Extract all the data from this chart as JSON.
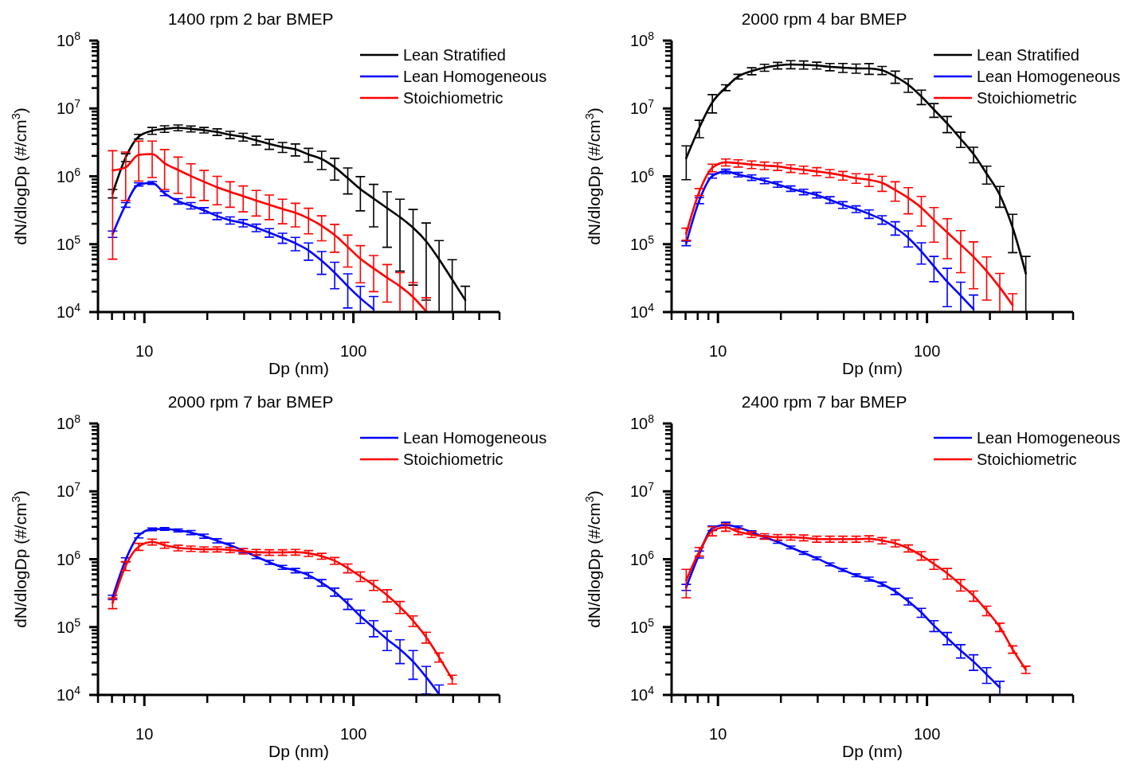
{
  "chart_data": [
    {
      "type": "line",
      "title": "1400 rpm 2 bar BMEP",
      "xlabel": "Dp (nm)",
      "ylabel": "dN/dlogDp (#/cm$^{3}$)",
      "log": "xy",
      "legend": "top right",
      "xlim": [
        6,
        500
      ],
      "ylim": [
        10000,
        100000000
      ],
      "xticks": [
        {
          "value": 6,
          "label": null
        },
        {
          "value": 7,
          "label": null
        },
        {
          "value": 8,
          "label": null
        },
        {
          "value": 9,
          "label": null
        },
        {
          "value": 10,
          "label": "10"
        },
        {
          "value": 20,
          "label": null
        },
        {
          "value": 30,
          "label": null
        },
        {
          "value": 40,
          "label": null
        },
        {
          "value": 50,
          "label": null
        },
        {
          "value": 60,
          "label": null
        },
        {
          "value": 70,
          "label": null
        },
        {
          "value": 80,
          "label": null
        },
        {
          "value": 90,
          "label": null
        },
        {
          "value": 100,
          "label": "100"
        },
        {
          "value": 200,
          "label": null
        },
        {
          "value": 300,
          "label": null
        },
        {
          "value": 400,
          "label": null
        },
        {
          "value": 500,
          "label": null
        }
      ],
      "yticks": [
        {
          "value": 10000,
          "label": "10$^{4}$"
        },
        {
          "value": 20000,
          "label": null
        },
        {
          "value": 30000,
          "label": null
        },
        {
          "value": 40000,
          "label": null
        },
        {
          "value": 50000,
          "label": null
        },
        {
          "value": 60000,
          "label": null
        },
        {
          "value": 70000,
          "label": null
        },
        {
          "value": 80000,
          "label": null
        },
        {
          "value": 90000,
          "label": null
        },
        {
          "value": 100000,
          "label": "10$^{5}$"
        },
        {
          "value": 200000,
          "label": null
        },
        {
          "value": 300000,
          "label": null
        },
        {
          "value": 400000,
          "label": null
        },
        {
          "value": 500000,
          "label": null
        },
        {
          "value": 600000,
          "label": null
        },
        {
          "value": 700000,
          "label": null
        },
        {
          "value": 800000,
          "label": null
        },
        {
          "value": 900000,
          "label": null
        },
        {
          "value": 1000000,
          "label": "10$^{6}$"
        },
        {
          "value": 2000000,
          "label": null
        },
        {
          "value": 3000000,
          "label": null
        },
        {
          "value": 4000000,
          "label": null
        },
        {
          "value": 5000000,
          "label": null
        },
        {
          "value": 6000000,
          "label": null
        },
        {
          "value": 7000000,
          "label": null
        },
        {
          "value": 8000000,
          "label": null
        },
        {
          "value": 9000000,
          "label": null
        },
        {
          "value": 10000000,
          "label": "10$^{7}$"
        },
        {
          "value": 20000000,
          "label": null
        },
        {
          "value": 30000000,
          "label": null
        },
        {
          "value": 40000000,
          "label": null
        },
        {
          "value": 50000000,
          "label": null
        },
        {
          "value": 60000000,
          "label": null
        },
        {
          "value": 70000000,
          "label": null
        },
        {
          "value": 80000000,
          "label": null
        },
        {
          "value": 90000000,
          "label": null
        },
        {
          "value": 100000000,
          "label": "10$^{8}$"
        }
      ],
      "x": [
        7.05,
        8.14,
        9.4,
        10.9,
        12.5,
        14.5,
        16.7,
        19.3,
        22.3,
        25.7,
        29.7,
        34.3,
        39.6,
        45.8,
        52.8,
        61,
        70.5,
        81.4,
        94,
        108,
        125,
        145,
        167,
        193,
        223,
        257,
        297,
        343
      ],
      "series": [
        {
          "name": "Lean Stratified",
          "color": "#000000",
          "values": [
            560000.0,
            1900000.0,
            3860000.0,
            4700000.0,
            5000000.0,
            5200000.0,
            5000000.0,
            4800000.0,
            4500000.0,
            4100000.0,
            3800000.0,
            3400000.0,
            3000000.0,
            2700000.0,
            2500000.0,
            2100000.0,
            1800000.0,
            1360000.0,
            940000.0,
            650000.0,
            470000.0,
            340000.0,
            250000.0,
            175000.0,
            110000.0,
            60000.0,
            30000.0,
            15000.0
          ],
          "errors": [
            80000.0,
            250000.0,
            300000.0,
            550000.0,
            550000.0,
            500000.0,
            500000.0,
            450000.0,
            500000.0,
            500000.0,
            500000.0,
            500000.0,
            500000.0,
            450000.0,
            500000.0,
            480000.0,
            540000.0,
            480000.0,
            390000.0,
            340000.0,
            290000.0,
            250000.0,
            210000.0,
            150000.0,
            95000.0,
            53000.0,
            29000.0,
            9000.0
          ]
        },
        {
          "name": "Lean Homogeneous",
          "color": "#0000ff",
          "values": [
            141000.0,
            380000.0,
            760000.0,
            800000.0,
            560000.0,
            430000.0,
            370000.0,
            315000.0,
            260000.0,
            225000.0,
            205000.0,
            175000.0,
            148000.0,
            124000.0,
            103000.0,
            81000.0,
            57000.0,
            38000.0,
            24000.0,
            16000.0,
            11000.0,
            null,
            null,
            null,
            null,
            null,
            null,
            null
          ],
          "errors": [
            15000.0,
            30000.0,
            40000.0,
            40000.0,
            40000.0,
            40000.0,
            40000.0,
            30000.0,
            30000.0,
            27000.0,
            25000.0,
            22000.0,
            21000.0,
            21000.0,
            23000.0,
            23000.0,
            21000.0,
            16000.0,
            12500.0,
            7900.0,
            5900.0,
            null,
            null,
            null,
            null,
            null,
            null,
            null
          ]
        },
        {
          "name": "Stoichiometric",
          "color": "#ff0000",
          "values": [
            1220000.0,
            1360000.0,
            2070000.0,
            2130000.0,
            1560000.0,
            1240000.0,
            1010000.0,
            830000.0,
            690000.0,
            590000.0,
            510000.0,
            440000.0,
            380000.0,
            330000.0,
            290000.0,
            240000.0,
            187000.0,
            136000.0,
            91000.0,
            61000.0,
            44000.0,
            32000.0,
            24000.0,
            16600.0,
            10200.0,
            null,
            null,
            null
          ],
          "errors": [
            1160000.0,
            920000.0,
            1220000.0,
            1170000.0,
            920000.0,
            680000.0,
            520000.0,
            390000.0,
            310000.0,
            240000.0,
            210000.0,
            180000.0,
            150000.0,
            130000.0,
            110000.0,
            98000.0,
            75000.0,
            60000.0,
            45000.0,
            34000.0,
            24000.0,
            18000.0,
            14000.0,
            10600.0,
            6000.0,
            null,
            null,
            null
          ]
        }
      ]
    },
    {
      "type": "line",
      "title": "2000 rpm 4 bar BMEP",
      "xlabel": "Dp (nm)",
      "ylabel": "dN/dlogDp (#/cm$^{3}$)",
      "log": "xy",
      "legend": "top right",
      "xlim": [
        6,
        500
      ],
      "ylim": [
        10000,
        100000000
      ],
      "xticks": [
        {
          "value": 6,
          "label": null
        },
        {
          "value": 7,
          "label": null
        },
        {
          "value": 8,
          "label": null
        },
        {
          "value": 9,
          "label": null
        },
        {
          "value": 10,
          "label": "10"
        },
        {
          "value": 20,
          "label": null
        },
        {
          "value": 30,
          "label": null
        },
        {
          "value": 40,
          "label": null
        },
        {
          "value": 50,
          "label": null
        },
        {
          "value": 60,
          "label": null
        },
        {
          "value": 70,
          "label": null
        },
        {
          "value": 80,
          "label": null
        },
        {
          "value": 90,
          "label": null
        },
        {
          "value": 100,
          "label": "100"
        },
        {
          "value": 200,
          "label": null
        },
        {
          "value": 300,
          "label": null
        },
        {
          "value": 400,
          "label": null
        },
        {
          "value": 500,
          "label": null
        }
      ],
      "yticks": [
        {
          "value": 10000,
          "label": "10$^{4}$"
        },
        {
          "value": 20000,
          "label": null
        },
        {
          "value": 30000,
          "label": null
        },
        {
          "value": 40000,
          "label": null
        },
        {
          "value": 50000,
          "label": null
        },
        {
          "value": 60000,
          "label": null
        },
        {
          "value": 70000,
          "label": null
        },
        {
          "value": 80000,
          "label": null
        },
        {
          "value": 90000,
          "label": null
        },
        {
          "value": 100000,
          "label": "10$^{5}$"
        },
        {
          "value": 200000,
          "label": null
        },
        {
          "value": 300000,
          "label": null
        },
        {
          "value": 400000,
          "label": null
        },
        {
          "value": 500000,
          "label": null
        },
        {
          "value": 600000,
          "label": null
        },
        {
          "value": 700000,
          "label": null
        },
        {
          "value": 800000,
          "label": null
        },
        {
          "value": 900000,
          "label": null
        },
        {
          "value": 1000000,
          "label": "10$^{6}$"
        },
        {
          "value": 2000000,
          "label": null
        },
        {
          "value": 3000000,
          "label": null
        },
        {
          "value": 4000000,
          "label": null
        },
        {
          "value": 5000000,
          "label": null
        },
        {
          "value": 6000000,
          "label": null
        },
        {
          "value": 7000000,
          "label": null
        },
        {
          "value": 8000000,
          "label": null
        },
        {
          "value": 9000000,
          "label": null
        },
        {
          "value": 10000000,
          "label": "10$^{7}$"
        },
        {
          "value": 20000000,
          "label": null
        },
        {
          "value": 30000000,
          "label": null
        },
        {
          "value": 40000000,
          "label": null
        },
        {
          "value": 50000000,
          "label": null
        },
        {
          "value": 60000000,
          "label": null
        },
        {
          "value": 70000000,
          "label": null
        },
        {
          "value": 80000000,
          "label": null
        },
        {
          "value": 90000000,
          "label": null
        },
        {
          "value": 100000000,
          "label": "10$^{8}$"
        }
      ],
      "x": [
        7.05,
        8.14,
        9.4,
        10.9,
        12.5,
        14.5,
        16.7,
        19.3,
        22.3,
        25.7,
        29.7,
        34.3,
        39.6,
        45.8,
        52.8,
        61,
        70.5,
        81.4,
        94,
        108,
        125,
        145,
        167,
        193,
        223,
        257,
        297
      ],
      "series": [
        {
          "name": "Lean Stratified",
          "color": "#000000",
          "values": [
            1850000.0,
            5200000.0,
            12300000.0,
            20300000.0,
            29500000.0,
            35600000.0,
            40000000.0,
            43000000.0,
            44500000.0,
            44000000.0,
            43000000.0,
            41000000.0,
            40000000.0,
            39000000.0,
            38800000.0,
            36600000.0,
            29500000.0,
            22300000.0,
            15000000.0,
            9600000.0,
            6000000.0,
            3560000.0,
            2130000.0,
            1090000.0,
            530000.0,
            175000.0,
            37000.0
          ],
          "errors": [
            960000.0,
            1500000.0,
            3700000.0,
            2000000.0,
            2300000.0,
            4200000.0,
            4700000.0,
            4800000.0,
            6000000.0,
            6000000.0,
            5000000.0,
            5000000.0,
            6000000.0,
            6000000.0,
            7000000.0,
            5000000.0,
            6000000.0,
            5000000.0,
            3600000.0,
            2200000.0,
            1600000.0,
            900000.0,
            550000.0,
            320000.0,
            180000.0,
            100000.0,
            29000.0
          ]
        },
        {
          "name": "Lean Homogeneous",
          "color": "#0000ff",
          "values": [
            103000.0,
            440000.0,
            1010000.0,
            1180000.0,
            1060000.0,
            960000.0,
            860000.0,
            760000.0,
            660000.0,
            590000.0,
            530000.0,
            450000.0,
            380000.0,
            330000.0,
            280000.0,
            230000.0,
            175000.0,
            124000.0,
            78000.0,
            47000.0,
            28000.0,
            17500.0,
            11000.0,
            null,
            null,
            null,
            null
          ],
          "errors": [
            8000.0,
            45000.0,
            70000.0,
            90000.0,
            80000.0,
            90000.0,
            80000.0,
            70000.0,
            60000.0,
            55000.0,
            50000.0,
            50000.0,
            43000.0,
            37000.0,
            40000.0,
            33000.0,
            39000.0,
            33000.0,
            27000.0,
            19000.0,
            16000.0,
            10000.0,
            6800.0,
            null,
            null,
            null,
            null
          ]
        },
        {
          "name": "Stoichiometric",
          "color": "#ff0000",
          "values": [
            143000.0,
            590000.0,
            1340000.0,
            1610000.0,
            1560000.0,
            1490000.0,
            1440000.0,
            1400000.0,
            1310000.0,
            1250000.0,
            1180000.0,
            1110000.0,
            1030000.0,
            940000.0,
            890000.0,
            800000.0,
            630000.0,
            480000.0,
            345000.0,
            227000.0,
            149000.0,
            98000.0,
            65000.0,
            40000.0,
            23000.0,
            12600.0,
            null
          ],
          "errors": [
            29000.0,
            70000.0,
            170000.0,
            190000.0,
            190000.0,
            190000.0,
            180000.0,
            180000.0,
            170000.0,
            160000.0,
            160000.0,
            150000.0,
            150000.0,
            150000.0,
            180000.0,
            200000.0,
            200000.0,
            200000.0,
            160000.0,
            120000.0,
            88000.0,
            60000.0,
            43000.0,
            25000.0,
            14000.0,
            6000.0,
            null
          ]
        }
      ]
    },
    {
      "type": "line",
      "title": "2000 rpm 7 bar BMEP",
      "xlabel": "Dp (nm)",
      "ylabel": "dN/dlogDp (#/cm$^{3}$)",
      "log": "xy",
      "legend": "top right",
      "xlim": [
        6,
        500
      ],
      "ylim": [
        10000,
        100000000
      ],
      "xticks": [
        {
          "value": 6,
          "label": null
        },
        {
          "value": 7,
          "label": null
        },
        {
          "value": 8,
          "label": null
        },
        {
          "value": 9,
          "label": null
        },
        {
          "value": 10,
          "label": "10"
        },
        {
          "value": 20,
          "label": null
        },
        {
          "value": 30,
          "label": null
        },
        {
          "value": 40,
          "label": null
        },
        {
          "value": 50,
          "label": null
        },
        {
          "value": 60,
          "label": null
        },
        {
          "value": 70,
          "label": null
        },
        {
          "value": 80,
          "label": null
        },
        {
          "value": 90,
          "label": null
        },
        {
          "value": 100,
          "label": "100"
        },
        {
          "value": 200,
          "label": null
        },
        {
          "value": 300,
          "label": null
        },
        {
          "value": 400,
          "label": null
        },
        {
          "value": 500,
          "label": null
        }
      ],
      "yticks": [
        {
          "value": 10000,
          "label": "10$^{4}$"
        },
        {
          "value": 20000,
          "label": null
        },
        {
          "value": 30000,
          "label": null
        },
        {
          "value": 40000,
          "label": null
        },
        {
          "value": 50000,
          "label": null
        },
        {
          "value": 60000,
          "label": null
        },
        {
          "value": 70000,
          "label": null
        },
        {
          "value": 80000,
          "label": null
        },
        {
          "value": 90000,
          "label": null
        },
        {
          "value": 100000,
          "label": "10$^{5}$"
        },
        {
          "value": 200000,
          "label": null
        },
        {
          "value": 300000,
          "label": null
        },
        {
          "value": 400000,
          "label": null
        },
        {
          "value": 500000,
          "label": null
        },
        {
          "value": 600000,
          "label": null
        },
        {
          "value": 700000,
          "label": null
        },
        {
          "value": 800000,
          "label": null
        },
        {
          "value": 900000,
          "label": null
        },
        {
          "value": 1000000,
          "label": "10$^{6}$"
        },
        {
          "value": 2000000,
          "label": null
        },
        {
          "value": 3000000,
          "label": null
        },
        {
          "value": 4000000,
          "label": null
        },
        {
          "value": 5000000,
          "label": null
        },
        {
          "value": 6000000,
          "label": null
        },
        {
          "value": 7000000,
          "label": null
        },
        {
          "value": 8000000,
          "label": null
        },
        {
          "value": 9000000,
          "label": null
        },
        {
          "value": 10000000,
          "label": "10$^{7}$"
        },
        {
          "value": 20000000,
          "label": null
        },
        {
          "value": 30000000,
          "label": null
        },
        {
          "value": 40000000,
          "label": null
        },
        {
          "value": 50000000,
          "label": null
        },
        {
          "value": 60000000,
          "label": null
        },
        {
          "value": 70000000,
          "label": null
        },
        {
          "value": 80000000,
          "label": null
        },
        {
          "value": 90000000,
          "label": null
        },
        {
          "value": 100000000,
          "label": "10$^{8}$"
        }
      ],
      "x": [
        7.05,
        8.14,
        9.4,
        10.9,
        12.5,
        14.5,
        16.7,
        19.3,
        22.3,
        25.7,
        29.7,
        34.3,
        39.6,
        45.8,
        52.8,
        61,
        70.5,
        81.4,
        94,
        108,
        125,
        145,
        167,
        193,
        223,
        257,
        297
      ],
      "series": [
        {
          "name": "Lean Homogeneous",
          "color": "#0000ff",
          "values": [
            274000.0,
            980000.0,
            2230000.0,
            2760000.0,
            2790000.0,
            2660000.0,
            2470000.0,
            2190000.0,
            1870000.0,
            1610000.0,
            1340000.0,
            1090000.0,
            900000.0,
            760000.0,
            680000.0,
            580000.0,
            450000.0,
            330000.0,
            220000.0,
            145000.0,
            98000.0,
            66000.0,
            47000.0,
            31000.0,
            18300.0,
            10300.0,
            null
          ],
          "errors": [
            20000.0,
            70000.0,
            170000.0,
            130000.0,
            130000.0,
            130000.0,
            170000.0,
            150000.0,
            130000.0,
            110000.0,
            90000.0,
            70000.0,
            60000.0,
            50000.0,
            50000.0,
            55000.0,
            50000.0,
            44000.0,
            38000.0,
            32000.0,
            26000.0,
            21000.0,
            18000.0,
            14000.0,
            8000.0,
            3700.0,
            null
          ]
        },
        {
          "name": "Stoichiometric",
          "color": "#ff0000",
          "values": [
            227000.0,
            800000.0,
            1530000.0,
            1800000.0,
            1610000.0,
            1470000.0,
            1430000.0,
            1400000.0,
            1400000.0,
            1370000.0,
            1310000.0,
            1270000.0,
            1260000.0,
            1260000.0,
            1270000.0,
            1220000.0,
            1110000.0,
            950000.0,
            740000.0,
            560000.0,
            416000.0,
            295000.0,
            198000.0,
            124000.0,
            71000.0,
            36000.0,
            17000.0
          ],
          "errors": [
            40000.0,
            120000.0,
            180000.0,
            180000.0,
            160000.0,
            140000.0,
            130000.0,
            120000.0,
            120000.0,
            120000.0,
            120000.0,
            120000.0,
            120000.0,
            120000.0,
            120000.0,
            120000.0,
            110000.0,
            110000.0,
            110000.0,
            90000.0,
            70000.0,
            60000.0,
            40000.0,
            22000.0,
            13000.0,
            5500.0,
            2500.0
          ]
        }
      ]
    },
    {
      "type": "line",
      "title": "2400 rpm 7 bar BMEP",
      "xlabel": "Dp (nm)",
      "ylabel": "dN/dlogDp (#/cm$^{3}$)",
      "log": "xy",
      "legend": "top right",
      "xlim": [
        6,
        500
      ],
      "ylim": [
        10000,
        100000000
      ],
      "xticks": [
        {
          "value": 6,
          "label": null
        },
        {
          "value": 7,
          "label": null
        },
        {
          "value": 8,
          "label": null
        },
        {
          "value": 9,
          "label": null
        },
        {
          "value": 10,
          "label": "10"
        },
        {
          "value": 20,
          "label": null
        },
        {
          "value": 30,
          "label": null
        },
        {
          "value": 40,
          "label": null
        },
        {
          "value": 50,
          "label": null
        },
        {
          "value": 60,
          "label": null
        },
        {
          "value": 70,
          "label": null
        },
        {
          "value": 80,
          "label": null
        },
        {
          "value": 90,
          "label": null
        },
        {
          "value": 100,
          "label": "100"
        },
        {
          "value": 200,
          "label": null
        },
        {
          "value": 300,
          "label": null
        },
        {
          "value": 400,
          "label": null
        },
        {
          "value": 500,
          "label": null
        }
      ],
      "yticks": [
        {
          "value": 10000,
          "label": "10$^{4}$"
        },
        {
          "value": 20000,
          "label": null
        },
        {
          "value": 30000,
          "label": null
        },
        {
          "value": 40000,
          "label": null
        },
        {
          "value": 50000,
          "label": null
        },
        {
          "value": 60000,
          "label": null
        },
        {
          "value": 70000,
          "label": null
        },
        {
          "value": 80000,
          "label": null
        },
        {
          "value": 90000,
          "label": null
        },
        {
          "value": 100000,
          "label": "10$^{5}$"
        },
        {
          "value": 200000,
          "label": null
        },
        {
          "value": 300000,
          "label": null
        },
        {
          "value": 400000,
          "label": null
        },
        {
          "value": 500000,
          "label": null
        },
        {
          "value": 600000,
          "label": null
        },
        {
          "value": 700000,
          "label": null
        },
        {
          "value": 800000,
          "label": null
        },
        {
          "value": 900000,
          "label": null
        },
        {
          "value": 1000000,
          "label": "10$^{6}$"
        },
        {
          "value": 2000000,
          "label": null
        },
        {
          "value": 3000000,
          "label": null
        },
        {
          "value": 4000000,
          "label": null
        },
        {
          "value": 5000000,
          "label": null
        },
        {
          "value": 6000000,
          "label": null
        },
        {
          "value": 7000000,
          "label": null
        },
        {
          "value": 8000000,
          "label": null
        },
        {
          "value": 9000000,
          "label": null
        },
        {
          "value": 10000000,
          "label": "10$^{7}$"
        },
        {
          "value": 20000000,
          "label": null
        },
        {
          "value": 30000000,
          "label": null
        },
        {
          "value": 40000000,
          "label": null
        },
        {
          "value": 50000000,
          "label": null
        },
        {
          "value": 60000000,
          "label": null
        },
        {
          "value": 70000000,
          "label": null
        },
        {
          "value": 80000000,
          "label": null
        },
        {
          "value": 90000000,
          "label": null
        },
        {
          "value": 100000000,
          "label": "10$^{8}$"
        }
      ],
      "x": [
        7.05,
        8.14,
        9.4,
        10.9,
        12.5,
        14.5,
        16.7,
        19.3,
        22.3,
        25.7,
        29.7,
        34.3,
        39.6,
        45.8,
        52.8,
        61,
        70.5,
        81.4,
        94,
        108,
        125,
        145,
        167,
        193,
        223,
        257,
        297
      ],
      "series": [
        {
          "name": "Lean Homogeneous",
          "color": "#0000ff",
          "values": [
            386000.0,
            1180000.0,
            2860000.0,
            3200000.0,
            2950000.0,
            2500000.0,
            2110000.0,
            1800000.0,
            1490000.0,
            1240000.0,
            1030000.0,
            840000.0,
            695000.0,
            580000.0,
            510000.0,
            430000.0,
            336000.0,
            240000.0,
            164000.0,
            105000.0,
            69000.0,
            45000.0,
            31000.0,
            20000.0,
            12900.0,
            null,
            null
          ],
          "errors": [
            40000.0,
            140000.0,
            220000.0,
            300000.0,
            140000.0,
            120000.0,
            100000.0,
            85000.0,
            70000.0,
            60000.0,
            50000.0,
            40000.0,
            33000.0,
            28000.0,
            34000.0,
            29000.0,
            34000.0,
            28000.0,
            25000.0,
            19000.0,
            14000.0,
            10000.0,
            8000.0,
            5200.0,
            3000.0,
            null,
            null
          ]
        },
        {
          "name": "Stoichiometric",
          "color": "#ff0000",
          "values": [
            490000.0,
            1300000.0,
            2610000.0,
            2950000.0,
            2540000.0,
            2310000.0,
            2170000.0,
            2110000.0,
            2110000.0,
            2070000.0,
            1980000.0,
            1980000.0,
            1980000.0,
            1980000.0,
            2010000.0,
            1880000.0,
            1720000.0,
            1450000.0,
            1130000.0,
            850000.0,
            620000.0,
            420000.0,
            290000.0,
            175000.0,
            100000.0,
            47000.0,
            23600.0
          ],
          "errors": [
            220000.0,
            190000.0,
            400000.0,
            370000.0,
            240000.0,
            220000.0,
            200000.0,
            200000.0,
            200000.0,
            200000.0,
            200000.0,
            200000.0,
            200000.0,
            200000.0,
            200000.0,
            200000.0,
            200000.0,
            170000.0,
            160000.0,
            140000.0,
            110000.0,
            80000.0,
            50000.0,
            28000.0,
            14000.0,
            5800.0,
            2900.0
          ]
        }
      ]
    }
  ]
}
